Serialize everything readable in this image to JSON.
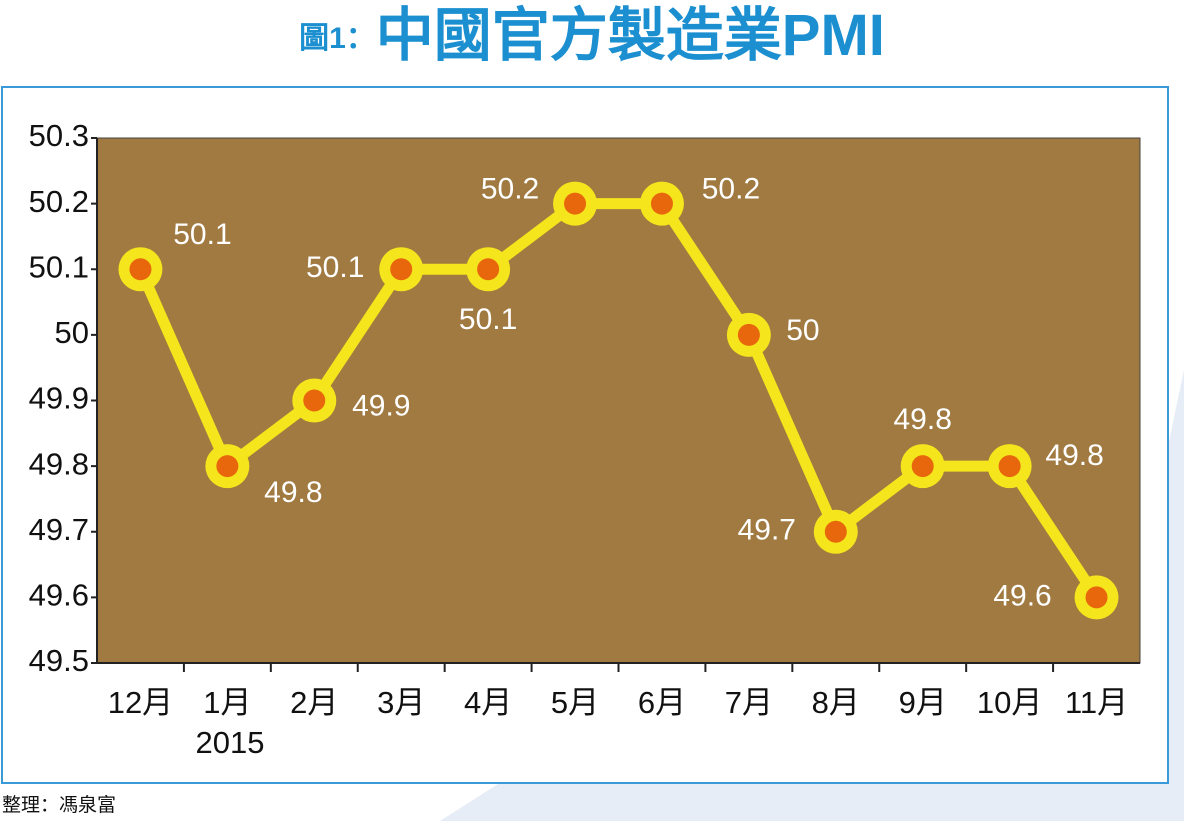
{
  "chart_data": {
    "type": "line",
    "title_label": "圖1：",
    "title": "中國官方製造業PMI",
    "categories": [
      "12月",
      "1月",
      "2月",
      "3月",
      "4月",
      "5月",
      "6月",
      "7月",
      "8月",
      "9月",
      "10月",
      "11月"
    ],
    "year_note": "2015",
    "values": [
      50.1,
      49.8,
      49.9,
      50.1,
      50.1,
      50.2,
      50.2,
      50,
      49.7,
      49.8,
      49.8,
      49.6
    ],
    "color": "#f4e51c",
    "marker_color": "#e8670c",
    "ylim": [
      49.5,
      50.3
    ],
    "yticks": [
      49.5,
      49.6,
      49.7,
      49.8,
      49.9,
      50,
      50.1,
      50.2,
      50.3
    ],
    "source": "整理：馮泉富"
  }
}
